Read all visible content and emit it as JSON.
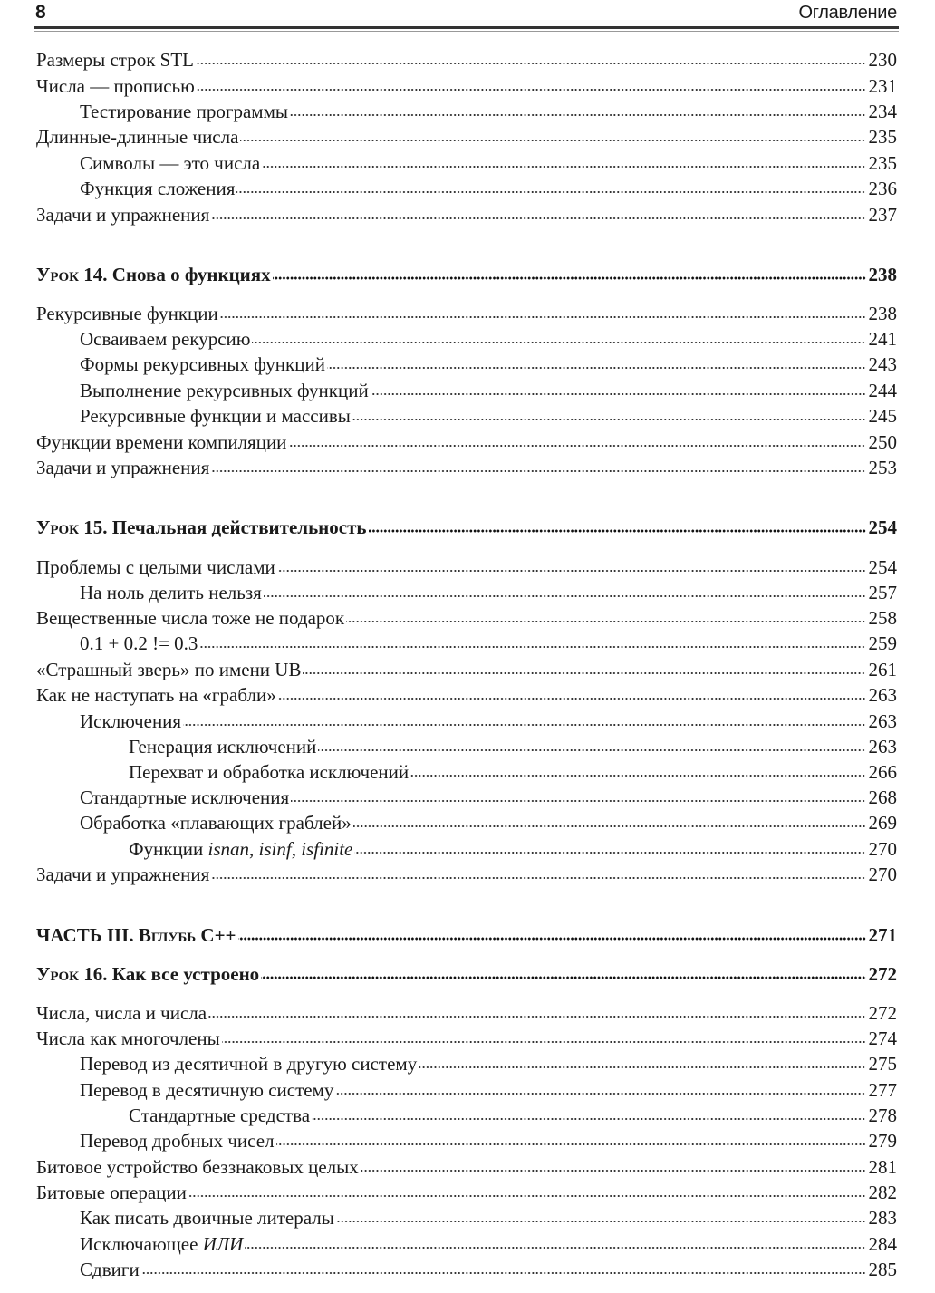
{
  "header": {
    "page_number": "8",
    "running_title": "Оглавление"
  },
  "entries": [
    {
      "level": 0,
      "parts": [
        {
          "text": "Размеры строк STL"
        }
      ],
      "page": "230"
    },
    {
      "level": 0,
      "parts": [
        {
          "text": "Числа — прописью"
        }
      ],
      "page": "231"
    },
    {
      "level": 1,
      "parts": [
        {
          "text": "Тестирование программы"
        }
      ],
      "page": "234"
    },
    {
      "level": 0,
      "parts": [
        {
          "text": "Длинные-длинные числа"
        }
      ],
      "page": "235"
    },
    {
      "level": 1,
      "parts": [
        {
          "text": "Символы — это числа"
        }
      ],
      "page": "235"
    },
    {
      "level": 1,
      "parts": [
        {
          "text": "Функция сложения"
        }
      ],
      "page": "236"
    },
    {
      "level": 0,
      "parts": [
        {
          "text": "Задачи и упражнения"
        }
      ],
      "page": "237"
    },
    {
      "level": 0,
      "bold": true,
      "parts": [
        {
          "text": "Урок",
          "style": "sc"
        },
        {
          "text": " 14. Снова о функциях"
        }
      ],
      "page": "238"
    },
    {
      "level": 0,
      "parts": [
        {
          "text": "Рекурсивные функции"
        }
      ],
      "page": "238"
    },
    {
      "level": 1,
      "parts": [
        {
          "text": "Осваиваем рекурсию"
        }
      ],
      "page": "241"
    },
    {
      "level": 1,
      "parts": [
        {
          "text": "Формы рекурсивных функций"
        }
      ],
      "page": "243"
    },
    {
      "level": 1,
      "parts": [
        {
          "text": "Выполнение рекурсивных функций"
        }
      ],
      "page": "244"
    },
    {
      "level": 1,
      "parts": [
        {
          "text": "Рекурсивные функции и массивы"
        }
      ],
      "page": "245"
    },
    {
      "level": 0,
      "parts": [
        {
          "text": "Функции времени компиляции"
        }
      ],
      "page": "250"
    },
    {
      "level": 0,
      "parts": [
        {
          "text": "Задачи и упражнения"
        }
      ],
      "page": "253"
    },
    {
      "level": 0,
      "bold": true,
      "parts": [
        {
          "text": "Урок",
          "style": "sc"
        },
        {
          "text": " 15. Печальная действительность"
        }
      ],
      "page": "254"
    },
    {
      "level": 0,
      "parts": [
        {
          "text": "Проблемы с целыми числами"
        }
      ],
      "page": "254"
    },
    {
      "level": 1,
      "parts": [
        {
          "text": "На ноль делить нельзя"
        }
      ],
      "page": "257"
    },
    {
      "level": 0,
      "parts": [
        {
          "text": "Вещественные числа тоже не подарок"
        }
      ],
      "page": "258"
    },
    {
      "level": 1,
      "parts": [
        {
          "text": "0.1 + 0.2 != 0.3"
        }
      ],
      "page": "259"
    },
    {
      "level": 0,
      "parts": [
        {
          "text": "«Страшный зверь» по имени UB"
        }
      ],
      "page": "261"
    },
    {
      "level": 0,
      "parts": [
        {
          "text": "Как не наступать на «грабли»"
        }
      ],
      "page": "263"
    },
    {
      "level": 1,
      "parts": [
        {
          "text": "Исключения"
        }
      ],
      "page": "263"
    },
    {
      "level": 2,
      "parts": [
        {
          "text": "Генерация исключений"
        }
      ],
      "page": "263"
    },
    {
      "level": 2,
      "parts": [
        {
          "text": "Перехват и обработка исключений"
        }
      ],
      "page": "266"
    },
    {
      "level": 1,
      "parts": [
        {
          "text": "Стандартные исключения"
        }
      ],
      "page": "268"
    },
    {
      "level": 1,
      "parts": [
        {
          "text": "Обработка «плавающих граблей»"
        }
      ],
      "page": "269"
    },
    {
      "level": 2,
      "parts": [
        {
          "text": "Функции "
        },
        {
          "text": "isnan",
          "style": "it"
        },
        {
          "text": ", "
        },
        {
          "text": "isinf",
          "style": "it"
        },
        {
          "text": ", "
        },
        {
          "text": "isfinite",
          "style": "it"
        }
      ],
      "page": "270"
    },
    {
      "level": 0,
      "parts": [
        {
          "text": "Задачи и упражнения"
        }
      ],
      "page": "270"
    },
    {
      "level": 0,
      "bold": true,
      "parts": [
        {
          "text": "ЧАСТЬ III. "
        },
        {
          "text": "Вглубь",
          "style": "sc"
        },
        {
          "text": " C++"
        }
      ],
      "page": "271"
    },
    {
      "level": 0,
      "bold": true,
      "parts": [
        {
          "text": "Урок",
          "style": "sc"
        },
        {
          "text": " 16. Как все устроено"
        }
      ],
      "page": "272"
    },
    {
      "level": 0,
      "parts": [
        {
          "text": "Числа, числа и числа"
        }
      ],
      "page": "272"
    },
    {
      "level": 0,
      "parts": [
        {
          "text": "Числа как многочлены"
        }
      ],
      "page": "274"
    },
    {
      "level": 1,
      "parts": [
        {
          "text": "Перевод из десятичной в другую систему"
        }
      ],
      "page": "275"
    },
    {
      "level": 1,
      "parts": [
        {
          "text": "Перевод в десятичную систему"
        }
      ],
      "page": "277"
    },
    {
      "level": 2,
      "parts": [
        {
          "text": "Стандартные средства"
        }
      ],
      "page": "278"
    },
    {
      "level": 1,
      "parts": [
        {
          "text": "Перевод дробных чисел"
        }
      ],
      "page": "279"
    },
    {
      "level": 0,
      "parts": [
        {
          "text": "Битовое устройство беззнаковых целых"
        }
      ],
      "page": "281"
    },
    {
      "level": 0,
      "parts": [
        {
          "text": "Битовые операции"
        }
      ],
      "page": "282"
    },
    {
      "level": 1,
      "parts": [
        {
          "text": "Как писать двоичные литералы"
        }
      ],
      "page": "283"
    },
    {
      "level": 1,
      "parts": [
        {
          "text": "Исключающее "
        },
        {
          "text": "ИЛИ",
          "style": "it"
        }
      ],
      "page": "284"
    },
    {
      "level": 1,
      "parts": [
        {
          "text": "Сдвиги"
        }
      ],
      "page": "285"
    }
  ]
}
